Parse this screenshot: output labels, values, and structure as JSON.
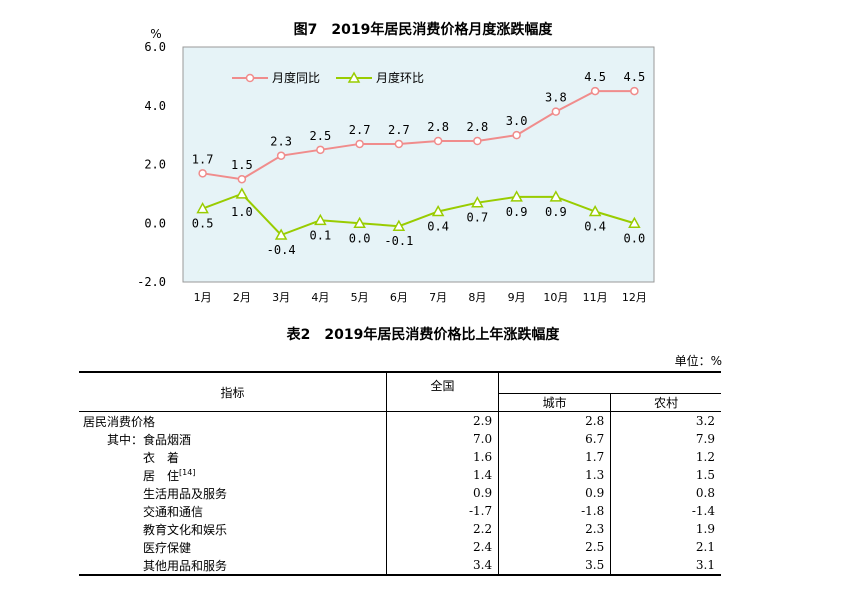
{
  "figure_title": "图7　2019年居民消费价格月度涨跌幅度",
  "table_title": "表2　2019年居民消费价格比上年涨跌幅度",
  "unit_label": "单位：%",
  "chart_data": {
    "type": "line",
    "title": "图7　2019年居民消费价格月度涨跌幅度",
    "ylabel": "%",
    "categories": [
      "1月",
      "2月",
      "3月",
      "4月",
      "5月",
      "6月",
      "7月",
      "8月",
      "9月",
      "10月",
      "11月",
      "12月"
    ],
    "ylim": [
      -2.0,
      6.0
    ],
    "yticks": [
      "6.0",
      "4.0",
      "2.0",
      "0.0",
      "-2.0"
    ],
    "grid": false,
    "legend_position": "top-left",
    "series": [
      {
        "name": "月度同比",
        "color": "#f08c8c",
        "marker": "circle",
        "values": [
          1.7,
          1.5,
          2.3,
          2.5,
          2.7,
          2.7,
          2.8,
          2.8,
          3.0,
          3.8,
          4.5,
          4.5
        ],
        "labels": [
          "1.7",
          "1.5",
          "2.3",
          "2.5",
          "2.7",
          "2.7",
          "2.8",
          "2.8",
          "3.0",
          "3.8",
          "4.5",
          "4.5"
        ]
      },
      {
        "name": "月度环比",
        "color": "#99cc00",
        "marker": "triangle",
        "values": [
          0.5,
          1.0,
          -0.4,
          0.1,
          0.0,
          -0.1,
          0.4,
          0.7,
          0.9,
          0.9,
          0.4,
          0.0
        ],
        "labels": [
          "0.5",
          "1.0",
          "-0.4",
          "0.1",
          "0.0",
          "-0.1",
          "0.4",
          "0.7",
          "0.9",
          "0.9",
          "0.4",
          "0.0"
        ]
      }
    ]
  },
  "table": {
    "header": {
      "indicator": "指标",
      "national": "全国",
      "urban": "城市",
      "rural": "农村"
    },
    "rows": [
      {
        "name": "居民消费价格",
        "indent": 0,
        "national": "2.9",
        "urban": "2.8",
        "rural": "3.2"
      },
      {
        "name": "其中：食品烟酒",
        "indent": 1,
        "national": "7.0",
        "urban": "6.7",
        "rural": "7.9"
      },
      {
        "name": "衣　着",
        "indent": 2,
        "national": "1.6",
        "urban": "1.7",
        "rural": "1.2"
      },
      {
        "name": "居　住",
        "ref": "[14]",
        "indent": 2,
        "national": "1.4",
        "urban": "1.3",
        "rural": "1.5"
      },
      {
        "name": "生活用品及服务",
        "indent": 2,
        "national": "0.9",
        "urban": "0.9",
        "rural": "0.8"
      },
      {
        "name": "交通和通信",
        "indent": 2,
        "national": "-1.7",
        "urban": "-1.8",
        "rural": "-1.4"
      },
      {
        "name": "教育文化和娱乐",
        "indent": 2,
        "national": "2.2",
        "urban": "2.3",
        "rural": "1.9"
      },
      {
        "name": "医疗保健",
        "indent": 2,
        "national": "2.4",
        "urban": "2.5",
        "rural": "2.1"
      },
      {
        "name": "其他用品和服务",
        "indent": 2,
        "national": "3.4",
        "urban": "3.5",
        "rural": "3.1"
      }
    ]
  }
}
